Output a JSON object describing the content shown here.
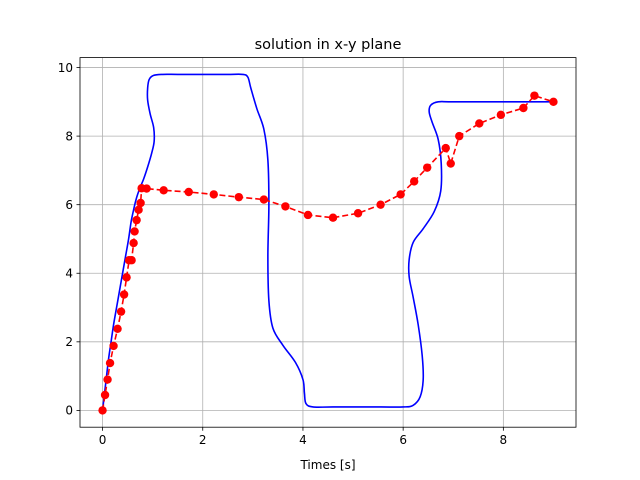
{
  "chart_data": {
    "type": "line",
    "title": "solution in x-y plane",
    "xlabel": "Times [s]",
    "ylabel": "",
    "xlim": [
      -0.45,
      9.45
    ],
    "ylim": [
      -0.49,
      10.29
    ],
    "xticks": [
      0,
      2,
      4,
      6,
      8
    ],
    "yticks": [
      0,
      2,
      4,
      6,
      8,
      10
    ],
    "grid": true,
    "legend": "none",
    "series": [
      {
        "style": "solid line",
        "color": "#0000ff",
        "x": [
          0.0,
          0.04,
          0.08,
          0.12,
          0.17,
          0.22,
          0.28,
          0.34,
          0.4,
          0.46,
          0.52,
          0.57,
          0.62,
          0.66,
          0.7,
          0.75,
          0.82,
          0.9,
          0.98,
          1.03,
          1.02,
          0.95,
          0.9,
          0.9,
          0.93,
          1.02,
          1.2,
          1.5,
          2.0,
          2.5,
          2.8,
          2.9,
          2.96,
          3.08,
          3.22,
          3.3,
          3.32,
          3.3,
          3.32,
          3.4,
          3.6,
          3.85,
          4.0,
          4.03,
          4.06,
          4.2,
          4.6,
          5.5,
          6.0,
          6.2,
          6.34,
          6.4,
          6.38,
          6.3,
          6.2,
          6.12,
          6.12,
          6.2,
          6.4,
          6.62,
          6.75,
          6.76,
          6.7,
          6.58,
          6.52,
          6.55,
          6.7,
          7.0,
          8.0,
          9.0
        ],
        "y": [
          0.0,
          0.5,
          1.0,
          1.5,
          2.0,
          2.5,
          3.0,
          3.5,
          4.0,
          4.5,
          5.0,
          5.5,
          5.85,
          6.1,
          6.3,
          6.5,
          6.75,
          7.1,
          7.5,
          7.85,
          8.25,
          8.65,
          9.05,
          9.4,
          9.65,
          9.77,
          9.8,
          9.8,
          9.8,
          9.8,
          9.8,
          9.72,
          9.4,
          8.8,
          8.2,
          7.3,
          6.0,
          4.5,
          3.2,
          2.4,
          1.9,
          1.4,
          0.9,
          0.5,
          0.2,
          0.1,
          0.1,
          0.1,
          0.1,
          0.15,
          0.4,
          0.9,
          1.6,
          2.5,
          3.3,
          3.9,
          4.4,
          4.9,
          5.3,
          5.8,
          6.4,
          7.2,
          7.9,
          8.4,
          8.7,
          8.9,
          9.0,
          9.0,
          9.0,
          9.0
        ]
      },
      {
        "style": "dashed line with circle markers",
        "color": "#ff0000",
        "x": [
          0.0,
          0.05,
          0.1,
          0.15,
          0.22,
          0.3,
          0.37,
          0.43,
          0.48,
          0.53,
          0.58,
          0.62,
          0.64,
          0.68,
          0.72,
          0.76,
          0.78,
          0.88,
          1.22,
          1.72,
          2.22,
          2.72,
          3.22,
          3.65,
          4.1,
          4.6,
          5.1,
          5.55,
          5.95,
          6.22,
          6.48,
          6.85,
          6.95,
          7.12,
          7.52,
          7.95,
          8.4,
          8.62,
          9.0
        ],
        "y": [
          0.0,
          0.45,
          0.9,
          1.38,
          1.88,
          2.38,
          2.88,
          3.38,
          3.88,
          4.38,
          4.38,
          4.88,
          5.22,
          5.55,
          5.85,
          6.05,
          6.48,
          6.47,
          6.42,
          6.37,
          6.3,
          6.22,
          6.15,
          5.95,
          5.7,
          5.62,
          5.75,
          6.0,
          6.3,
          6.68,
          7.08,
          7.65,
          7.2,
          8.0,
          8.37,
          8.62,
          8.82,
          9.18,
          9.0
        ]
      }
    ]
  }
}
